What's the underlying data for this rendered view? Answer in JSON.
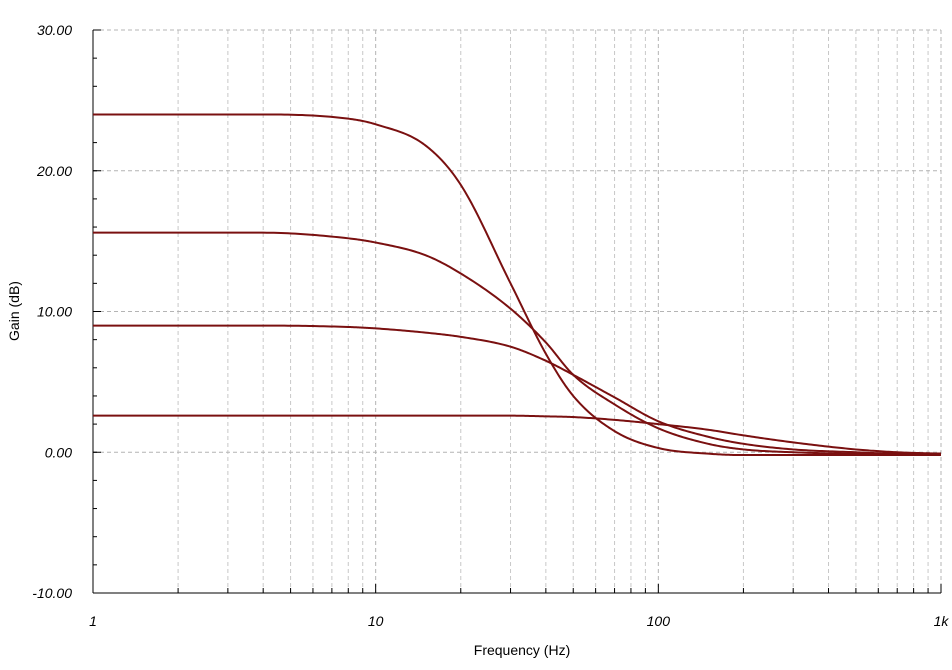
{
  "chart_data": {
    "type": "line",
    "title": "",
    "xlabel": "Frequency (Hz)",
    "ylabel": "Gain (dB)",
    "x_scale": "log",
    "xlim": [
      1,
      1000
    ],
    "ylim": [
      -10,
      30
    ],
    "x_ticks": [
      1,
      10,
      100,
      1000
    ],
    "x_tick_labels": [
      "1",
      "10",
      "100",
      "1k"
    ],
    "y_ticks": [
      -10,
      0,
      10,
      20,
      30
    ],
    "y_tick_labels": [
      "-10.00",
      "0.00",
      "10.00",
      "20.00",
      "30.00"
    ],
    "grid": true,
    "line_color": "#7a1010",
    "series": [
      {
        "x": [
          1,
          4,
          8,
          10,
          15,
          20,
          30,
          40,
          50,
          70,
          100,
          150,
          200,
          300,
          500,
          700,
          1000
        ],
        "values": [
          24.0,
          24.0,
          23.7,
          23.3,
          21.8,
          19.0,
          12.0,
          7.0,
          4.0,
          1.5,
          0.3,
          -0.1,
          -0.2,
          -0.2,
          -0.2,
          -0.2,
          -0.2
        ]
      },
      {
        "x": [
          1,
          4,
          8,
          10,
          15,
          20,
          30,
          40,
          50,
          70,
          100,
          150,
          200,
          300,
          500,
          700,
          1000
        ],
        "values": [
          15.6,
          15.6,
          15.2,
          14.9,
          14.0,
          12.7,
          10.2,
          7.8,
          5.5,
          3.4,
          1.7,
          0.6,
          0.2,
          0.0,
          -0.1,
          -0.1,
          -0.1
        ]
      },
      {
        "x": [
          1,
          4,
          8,
          10,
          15,
          20,
          30,
          40,
          50,
          70,
          100,
          150,
          200,
          300,
          500,
          700,
          1000
        ],
        "values": [
          9.0,
          9.0,
          8.9,
          8.8,
          8.5,
          8.2,
          7.5,
          6.5,
          5.5,
          3.9,
          2.2,
          1.1,
          0.6,
          0.2,
          0.0,
          -0.1,
          -0.1
        ]
      },
      {
        "x": [
          1,
          4,
          8,
          10,
          15,
          20,
          30,
          40,
          50,
          70,
          100,
          150,
          200,
          300,
          500,
          700,
          1000
        ],
        "values": [
          2.6,
          2.6,
          2.6,
          2.6,
          2.6,
          2.6,
          2.6,
          2.55,
          2.5,
          2.3,
          2.0,
          1.6,
          1.2,
          0.7,
          0.2,
          0.0,
          -0.1
        ]
      }
    ]
  }
}
